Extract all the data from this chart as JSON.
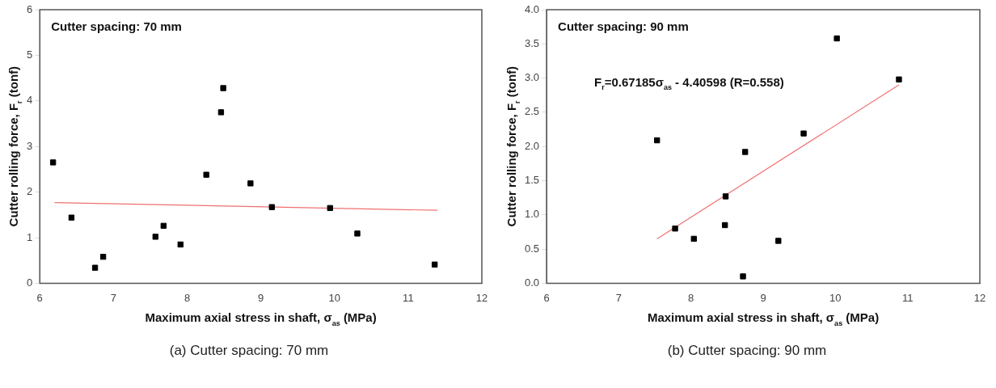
{
  "chart_data": [
    {
      "type": "scatter",
      "title": "(a)  Cutter spacing:  70  mm",
      "xlabel": "Maximum axial stress in shaft, σ$_{as}$ (MPa)",
      "ylabel": "Cutter rolling force, F$_{r}$ (tonf)",
      "annotations": [
        "Cutter spacing: 70 mm"
      ],
      "series": [
        {
          "color": "#000000",
          "marker": "square",
          "x": [
            6.18,
            6.43,
            6.75,
            6.86,
            7.57,
            7.68,
            7.91,
            8.26,
            8.46,
            8.49,
            8.86,
            9.15,
            9.94,
            10.31,
            11.36
          ],
          "values": [
            2.65,
            1.44,
            0.34,
            0.58,
            1.02,
            1.26,
            0.85,
            2.38,
            3.75,
            4.28,
            2.19,
            1.67,
            1.65,
            1.09,
            0.41
          ]
        },
        {
          "type": "line",
          "color": "#f07070",
          "marker": "none",
          "x": [
            6.2,
            11.4
          ],
          "values": [
            1.77,
            1.6
          ]
        }
      ],
      "xlim": [
        6,
        12
      ],
      "ylim": [
        0,
        6
      ],
      "xticks": [
        6,
        7,
        8,
        9,
        10,
        11,
        12
      ],
      "yticks": [
        0,
        1,
        2,
        3,
        4,
        5,
        6
      ],
      "grid": false,
      "legend": false
    },
    {
      "type": "scatter",
      "title": "(b)  Cutter spacing:  90  mm",
      "xlabel": "Maximum axial stress in shaft, σ$_{as}$ (MPa)",
      "ylabel": "Cutter rolling force, F$_{r}$ (tonf)",
      "annotations": [
        "Cutter spacing: 90 mm",
        "F$_{r}$=0.67185σ$_{as}$ - 4.40598 (R=0.558)"
      ],
      "series": [
        {
          "color": "#000000",
          "marker": "square",
          "x": [
            7.53,
            7.78,
            8.04,
            8.47,
            8.48,
            8.72,
            8.75,
            9.21,
            9.56,
            10.02,
            10.88
          ],
          "values": [
            2.09,
            0.8,
            0.65,
            0.85,
            1.27,
            0.1,
            1.92,
            0.62,
            2.19,
            3.58,
            2.98
          ]
        },
        {
          "type": "line",
          "color": "#f07070",
          "marker": "none",
          "x": [
            7.53,
            10.88
          ],
          "values": [
            0.65,
            2.9
          ]
        }
      ],
      "xlim": [
        6,
        12
      ],
      "ylim": [
        0,
        4
      ],
      "xticks": [
        6,
        7,
        8,
        9,
        10,
        11,
        12
      ],
      "yticks": [
        {
          "value": 0,
          "label": "0.0"
        },
        {
          "value": 0.5,
          "label": "0.5"
        },
        {
          "value": 1,
          "label": "1.0"
        },
        {
          "value": 1.5,
          "label": "1.5"
        },
        {
          "value": 2,
          "label": "2.0"
        },
        {
          "value": 2.5,
          "label": "2.5"
        },
        {
          "value": 3,
          "label": "3.0"
        },
        {
          "value": 3.5,
          "label": "3.5"
        },
        {
          "value": 4,
          "label": "4.0"
        }
      ],
      "grid": false,
      "legend": false
    }
  ]
}
